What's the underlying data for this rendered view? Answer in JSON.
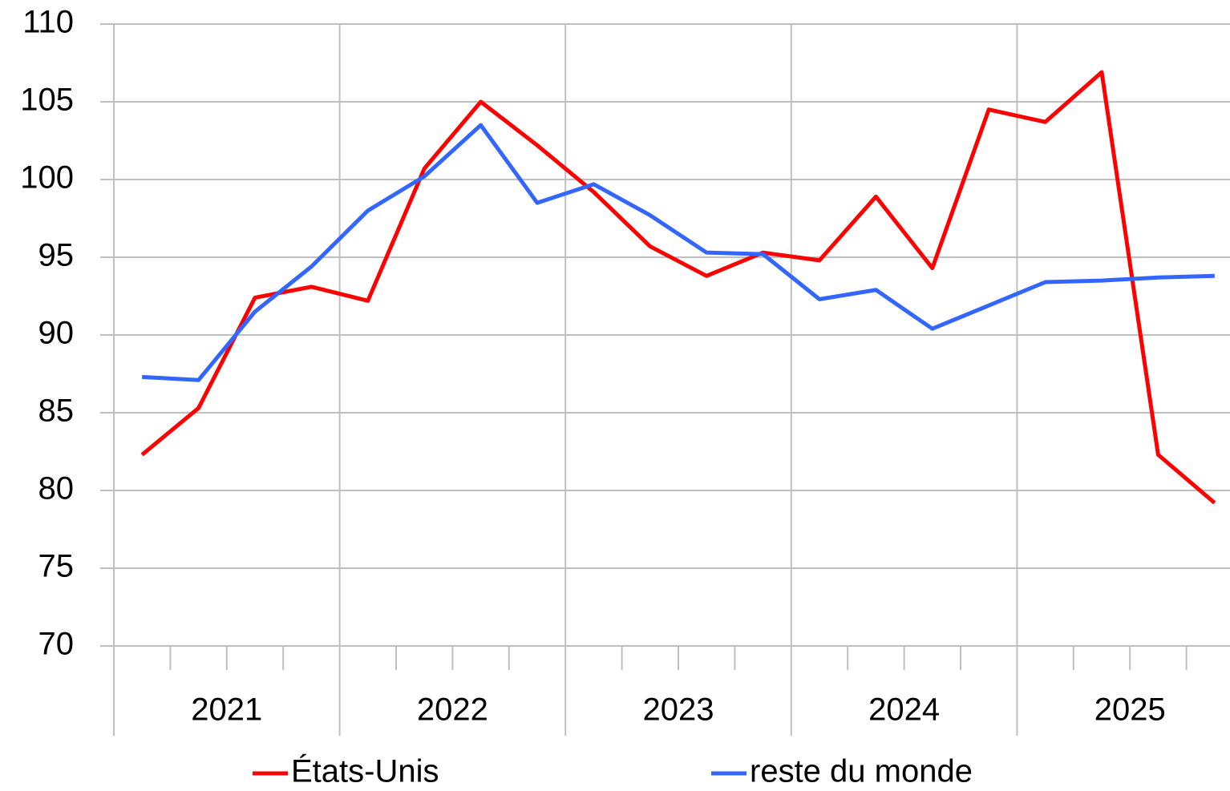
{
  "chart_data": {
    "type": "line",
    "categories": [
      null,
      null,
      null,
      null,
      null,
      null,
      null,
      null,
      null,
      null,
      null,
      null,
      null,
      null,
      null,
      null,
      null,
      null,
      null,
      null
    ],
    "x_groups": [
      "2021",
      "2022",
      "2023",
      "2024",
      "2025"
    ],
    "series": [
      {
        "name": "États-Unis",
        "color": "#ff0000",
        "values": [
          82.3,
          85.3,
          92.4,
          93.1,
          92.2,
          100.7,
          105.0,
          102.2,
          99.2,
          95.7,
          93.8,
          95.3,
          94.8,
          98.9,
          94.3,
          104.5,
          103.7,
          106.9,
          82.3,
          79.2
        ]
      },
      {
        "name": "reste du monde",
        "color": "#3366ff",
        "values": [
          87.3,
          87.1,
          91.5,
          94.4,
          98.0,
          100.2,
          103.5,
          98.5,
          99.7,
          97.7,
          95.3,
          95.2,
          92.3,
          92.9,
          90.4,
          91.9,
          93.4,
          93.5,
          93.7,
          93.8
        ]
      }
    ],
    "ylim": [
      70,
      110
    ],
    "yticks": [
      70,
      75,
      80,
      85,
      90,
      95,
      100,
      105,
      110
    ],
    "grid": true,
    "legend": "bottom"
  }
}
